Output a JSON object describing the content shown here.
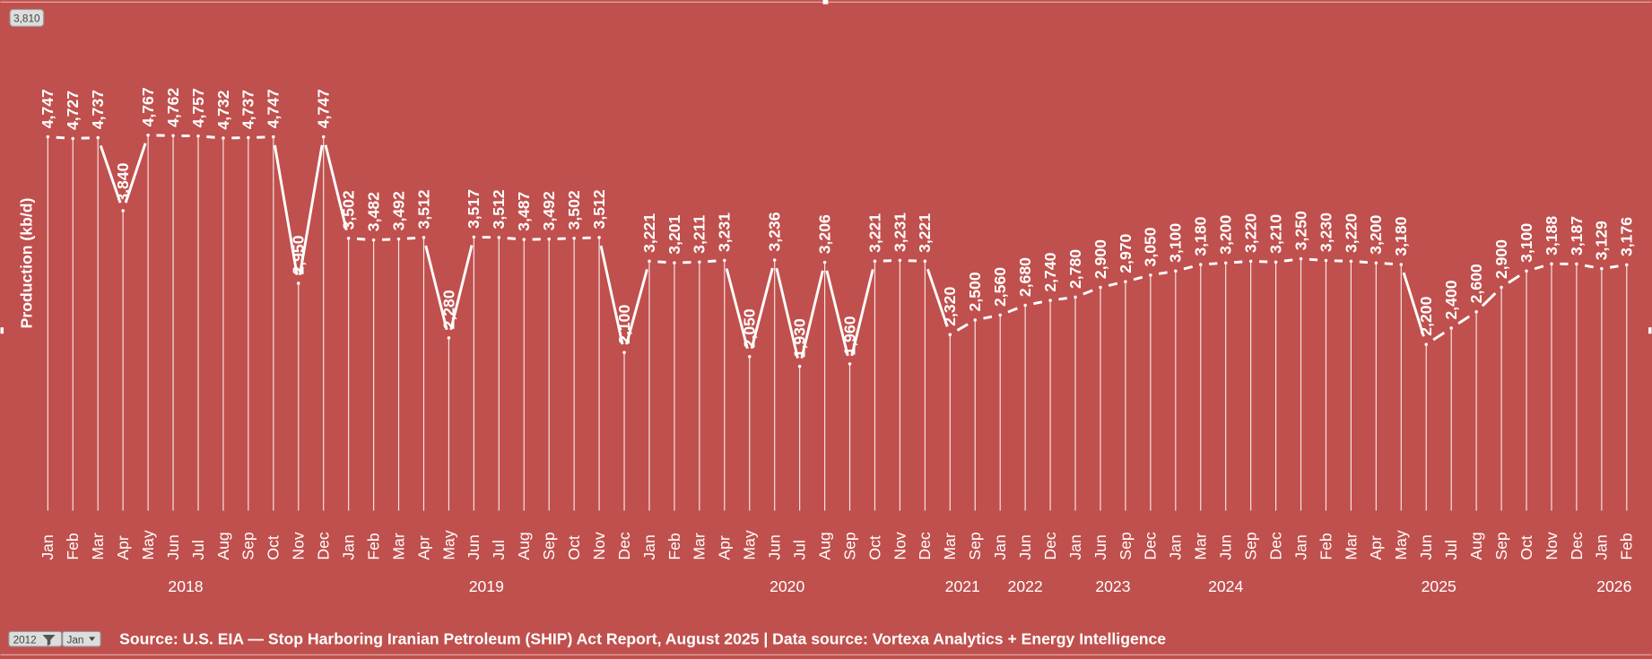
{
  "chart_data": {
    "type": "line",
    "title": "",
    "ylabel": "Production (kb/d)",
    "xlabel": "",
    "grid": false,
    "legend": "none",
    "groups": [
      {
        "year": "2018",
        "months": [
          "Jan",
          "Feb",
          "Mar",
          "Apr",
          "May",
          "Jun",
          "Jul",
          "Aug",
          "Sep",
          "Oct",
          "Nov",
          "Dec"
        ],
        "values": [
          4747,
          4727,
          4737,
          3840,
          4767,
          4762,
          4757,
          4732,
          4737,
          4747,
          2950,
          4747
        ]
      },
      {
        "year": "2019",
        "months": [
          "Jan",
          "Feb",
          "Mar",
          "Apr",
          "May",
          "Jun",
          "Jul",
          "Aug",
          "Sep",
          "Oct",
          "Nov",
          "Dec"
        ],
        "values": [
          3502,
          3482,
          3492,
          3512,
          2280,
          3517,
          3512,
          3487,
          3492,
          3502,
          3512,
          2100
        ]
      },
      {
        "year": "2020",
        "months": [
          "Jan",
          "Feb",
          "Mar",
          "Apr",
          "May",
          "Jun",
          "Jul",
          "Aug",
          "Sep",
          "Oct",
          "Nov",
          "Dec"
        ],
        "values": [
          3221,
          3201,
          3211,
          3231,
          2050,
          3236,
          1930,
          3206,
          1960,
          3221,
          3231,
          3221
        ]
      },
      {
        "year": "2021",
        "months": [
          "Mar",
          "Sep"
        ],
        "values": [
          2320,
          2500
        ]
      },
      {
        "year": "2022",
        "months": [
          "Jan",
          "Jun",
          "Dec"
        ],
        "values": [
          2560,
          2680,
          2740
        ]
      },
      {
        "year": "2023",
        "months": [
          "Jan",
          "Jun",
          "Sep",
          "Dec"
        ],
        "values": [
          2780,
          2900,
          2970,
          3050
        ]
      },
      {
        "year": "2024",
        "months": [
          "Jan",
          "Mar",
          "Jun",
          "Sep",
          "Dec"
        ],
        "values": [
          3100,
          3180,
          3200,
          3220,
          3210
        ]
      },
      {
        "year": "2025",
        "months": [
          "Jan",
          "Feb",
          "Mar",
          "Apr",
          "May",
          "Jun",
          "Jul",
          "Aug",
          "Sep",
          "Oct",
          "Nov",
          "Dec"
        ],
        "values": [
          3250,
          3230,
          3220,
          3200,
          3180,
          2200,
          2400,
          2600,
          2900,
          3100,
          3188,
          3187
        ]
      },
      {
        "year": "2026",
        "months": [
          "Jan",
          "Feb"
        ],
        "values": [
          3129,
          3176
        ]
      }
    ]
  },
  "badge": "3,810",
  "filters": {
    "year": "2012",
    "month": "Jan"
  },
  "source": "Source: U.S. EIA — Stop Harboring Iranian Petroleum (SHIP) Act Report, August 2025 | Data source: Vortexa Analytics + Energy Intelligence",
  "colors": {
    "background": "#C0504D",
    "line": "#FFFFFF"
  }
}
